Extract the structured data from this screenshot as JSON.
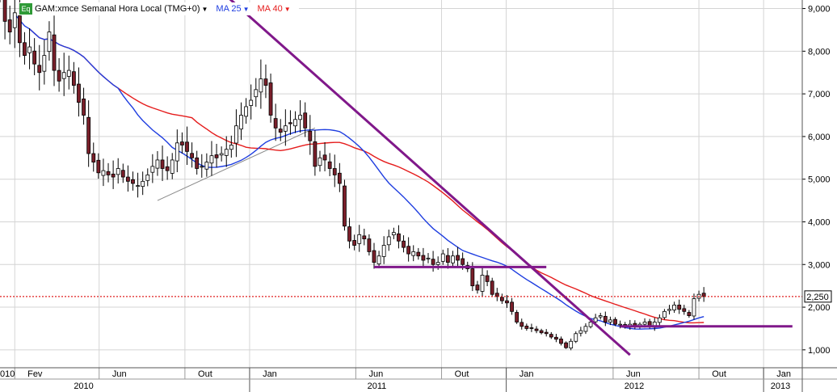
{
  "legend": {
    "badge": "Eq",
    "symbol_label": "GAM:xmce Semanal Hora Local (TMG+0)",
    "ma25_label": "MA 25",
    "ma40_label": "MA 40",
    "symbol_color": "#333333",
    "ma25_color": "#1f3ee0",
    "ma40_color": "#e51c1c"
  },
  "current_price_label": "2,250",
  "chart_data": {
    "type": "candlestick",
    "title": "GAM:xmce Semanal Hora Local (TMG+0)",
    "xlabel": "",
    "ylabel": "",
    "ylim": [
      580,
      9200
    ],
    "x_range": [
      "2010-01-11",
      "2013-02-25"
    ],
    "y_ticks": [
      1000,
      2000,
      3000,
      4000,
      5000,
      6000,
      7000,
      8000,
      9000
    ],
    "y_tick_labels": [
      "1,000",
      "2,000",
      "3,000",
      "4,000",
      "5,000",
      "6,000",
      "7,000",
      "8,000",
      "9,000"
    ],
    "x_month_ticks": [
      {
        "date": "2010-02-01",
        "label": "Fev"
      },
      {
        "date": "2010-06-01",
        "label": "Jun"
      },
      {
        "date": "2010-10-01",
        "label": "Out"
      },
      {
        "date": "2011-01-01",
        "label": "Jan"
      },
      {
        "date": "2011-06-01",
        "label": "Jun"
      },
      {
        "date": "2011-10-01",
        "label": "Out"
      },
      {
        "date": "2012-01-01",
        "label": "Jan"
      },
      {
        "date": "2012-06-01",
        "label": "Jun"
      },
      {
        "date": "2012-10-01",
        "label": "Out"
      },
      {
        "date": "2013-01-01",
        "label": "Jan"
      }
    ],
    "x_year_ticks": [
      {
        "date": "2010-01-01",
        "label": "2010",
        "center": "2010-05-10"
      },
      {
        "date": "2011-01-01",
        "label": "2011",
        "center": "2011-07-01"
      },
      {
        "date": "2012-01-01",
        "label": "2012",
        "center": "2012-07-01"
      },
      {
        "date": "2013-01-01",
        "label": "2013",
        "center": "2013-01-25"
      }
    ],
    "x_left_edge_label": "010",
    "first_week": "2010-01-11",
    "closes": [
      9400,
      8700,
      8450,
      8900,
      8200,
      7900,
      8100,
      7700,
      7500,
      7900,
      8450,
      7550,
      7300,
      7500,
      7550,
      7200,
      6800,
      6500,
      5600,
      5400,
      5150,
      5200,
      5100,
      5050,
      5250,
      5050,
      4950,
      4900,
      4850,
      4950,
      5100,
      5300,
      5450,
      5250,
      5200,
      5450,
      5850,
      5800,
      5650,
      5500,
      5250,
      5300,
      5400,
      5550,
      5500,
      5600,
      5700,
      5800,
      6250,
      6500,
      6700,
      6850,
      7100,
      7350,
      7200,
      6500,
      6200,
      6100,
      6250,
      6300,
      6400,
      6500,
      6200,
      5900,
      5300,
      5500,
      5450,
      5250,
      5100,
      4900,
      3900,
      3550,
      3450,
      3700,
      3600,
      3300,
      3050,
      3200,
      3450,
      3650,
      3750,
      3550,
      3400,
      3250,
      3300,
      3200,
      3100,
      3150,
      3000,
      3050,
      3250,
      3050,
      3200,
      3100,
      3000,
      2900,
      2500,
      2400,
      2750,
      2600,
      2300,
      2250,
      2150,
      2100,
      1900,
      1650,
      1550,
      1500,
      1500,
      1450,
      1400,
      1380,
      1300,
      1250,
      1150,
      1050,
      1200,
      1380,
      1450,
      1550,
      1650,
      1750,
      1800,
      1650,
      1700,
      1600,
      1600,
      1550,
      1600,
      1550,
      1600,
      1650,
      1550,
      1650,
      1750,
      1900,
      1950,
      2050,
      1950,
      1900,
      1800,
      2200,
      2300,
      2250
    ],
    "ma25_label": "MA 25",
    "ma40_label": "MA 40",
    "current_price": 2250,
    "current_price_label": "2,250",
    "trendlines": [
      {
        "color": "#80188a",
        "width": 3,
        "from": [
          "2010-11-15",
          9500
        ],
        "to": [
          "2012-06-25",
          880
        ]
      },
      {
        "color": "#80188a",
        "width": 3,
        "from": [
          "2011-06-27",
          2940
        ],
        "to": [
          "2012-02-27",
          2940
        ]
      },
      {
        "color": "#80188a",
        "width": 3,
        "from": [
          "2012-06-11",
          1550
        ],
        "to": [
          "2013-02-11",
          1550
        ]
      },
      {
        "color": "#8a8a8a",
        "width": 1,
        "from": [
          "2010-08-23",
          4500
        ],
        "to": [
          "2011-04-04",
          6200
        ]
      }
    ],
    "colors": {
      "bull": "#ffffff",
      "bear": "#7a1f2a",
      "wick": "#000000",
      "grid": "#d4d4d4",
      "current_line": "#e02020"
    }
  }
}
